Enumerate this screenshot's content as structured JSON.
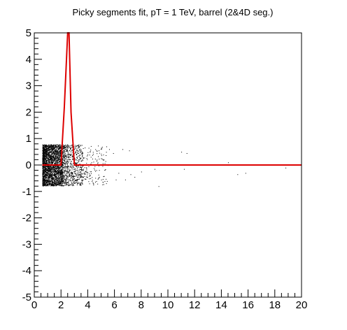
{
  "chart_data": {
    "type": "scatter",
    "title": "Picky segments fit, pT = 1 TeV, barrel (2&4D seg.)",
    "xlabel": "",
    "ylabel": "",
    "xlim": [
      0,
      20
    ],
    "ylim": [
      -5,
      5
    ],
    "x_ticks": [
      0,
      2,
      4,
      6,
      8,
      10,
      12,
      14,
      16,
      18,
      20
    ],
    "y_ticks": [
      -5,
      -4,
      -3,
      -2,
      -1,
      0,
      1,
      2,
      3,
      4,
      5
    ],
    "grid": false,
    "legend": "none",
    "colors": {
      "points": "#000000",
      "fit": "#dd0000",
      "axes": "#000000"
    },
    "series": [
      {
        "kind": "scatter",
        "clusters": [
          {
            "x_range": [
              0.6,
              2.1
            ],
            "y_range": [
              -0.78,
              0.78
            ],
            "count": 2600
          },
          {
            "x_range": [
              2.1,
              3.6
            ],
            "y_range": [
              -0.78,
              0.78
            ],
            "count": 700
          },
          {
            "x_range": [
              3.6,
              5.5
            ],
            "y_range": [
              -0.75,
              0.75
            ],
            "count": 150
          }
        ],
        "outliers": [
          [
            5.0,
            0.65
          ],
          [
            5.6,
            0.6
          ],
          [
            6.6,
            0.6
          ],
          [
            7.1,
            0.55
          ],
          [
            5.9,
            0.45
          ],
          [
            6.3,
            -0.3
          ],
          [
            7.2,
            -0.35
          ],
          [
            6.1,
            -0.55
          ],
          [
            6.8,
            -0.55
          ],
          [
            7.5,
            -0.45
          ],
          [
            8.0,
            -0.25
          ],
          [
            9.3,
            -0.8
          ],
          [
            9.0,
            -0.15
          ],
          [
            11.0,
            0.5
          ],
          [
            11.4,
            0.45
          ],
          [
            11.2,
            -0.15
          ],
          [
            14.5,
            0.1
          ],
          [
            15.2,
            -0.35
          ],
          [
            15.8,
            -0.3
          ],
          [
            18.8,
            -0.1
          ]
        ]
      },
      {
        "kind": "line",
        "x": [
          0.6,
          2.0,
          2.25,
          2.5,
          2.6,
          2.75,
          3.0,
          5.0,
          10.0,
          15.0,
          20.0
        ],
        "y": [
          0.0,
          0.0,
          2.2,
          5.0,
          5.0,
          2.0,
          0.0,
          0.0,
          0.0,
          0.0,
          0.0
        ]
      }
    ]
  }
}
